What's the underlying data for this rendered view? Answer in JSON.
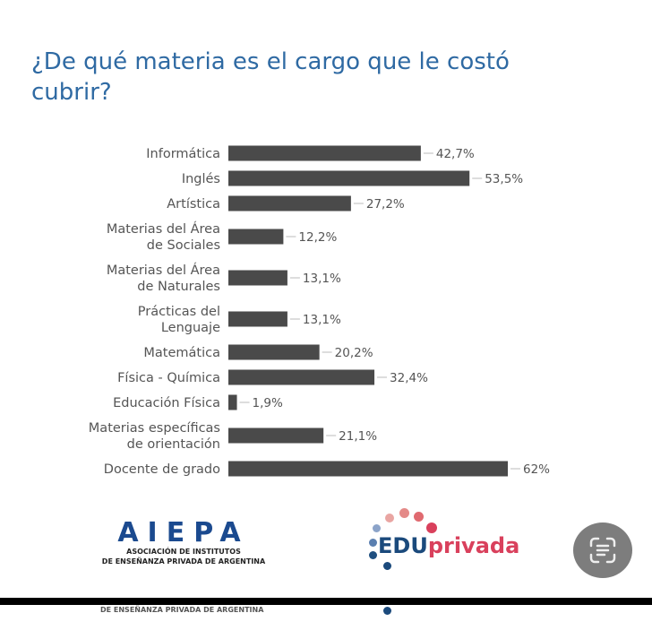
{
  "chart_data": {
    "type": "bar",
    "orientation": "horizontal",
    "title": "¿De qué materia es el cargo que le costó cubrir?",
    "categories": [
      [
        "Informática"
      ],
      [
        "Inglés"
      ],
      [
        "Artística"
      ],
      [
        "Materias del Área",
        "de Sociales"
      ],
      [
        "Materias del Área",
        "de Naturales"
      ],
      [
        "Prácticas del",
        "Lenguaje"
      ],
      [
        "Matemática"
      ],
      [
        "Física - Química"
      ],
      [
        "Educación Física"
      ],
      [
        "Materias específicas",
        "de orientación"
      ],
      [
        "Docente de grado"
      ]
    ],
    "values": [
      42.7,
      53.5,
      27.2,
      12.2,
      13.1,
      13.1,
      20.2,
      32.4,
      1.9,
      21.1,
      62
    ],
    "value_labels": [
      "42,7%",
      "53,5%",
      "27,2%",
      "12,2%",
      "13,1%",
      "13,1%",
      "20,2%",
      "32,4%",
      "1,9%",
      "21,1%",
      "62%"
    ],
    "xlim": [
      0,
      62
    ],
    "bar_color": "#4a4a4a",
    "grid": false
  },
  "logos": {
    "aiepa": {
      "name": "AIEPA",
      "line1": "ASOCIACIÓN DE INSTITUTOS",
      "line2": "DE ENSEÑANZA PRIVADA DE ARGENTINA"
    },
    "eduprivada": {
      "part1": "EDU",
      "part2": "privada"
    }
  },
  "overlay": {
    "cut_text": "DE ENSEÑANZA PRIVADA DE ARGENTINA",
    "scan_button": "scan-text-icon"
  }
}
